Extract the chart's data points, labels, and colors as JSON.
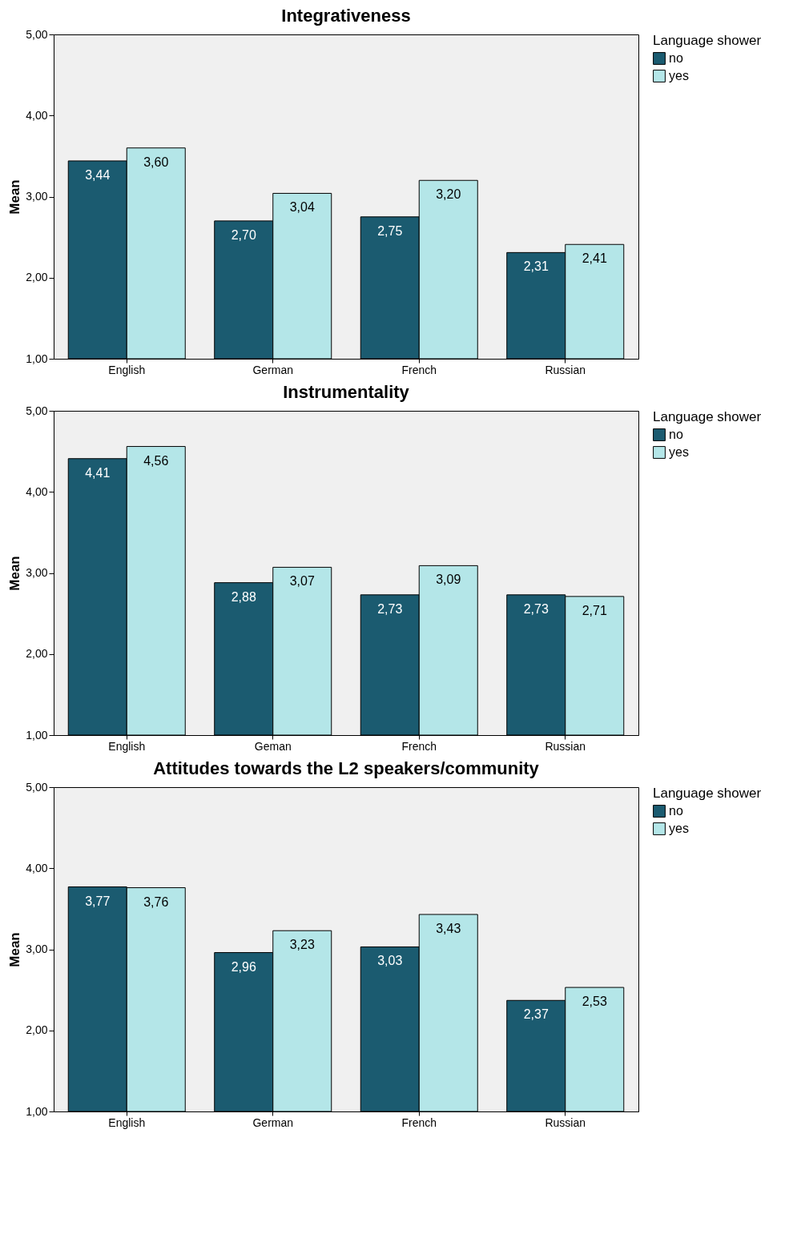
{
  "chart_data": [
    {
      "type": "bar",
      "title": "Integrativeness",
      "ylabel": "Mean",
      "legend_title": "Language shower",
      "legend": "right",
      "grid": false,
      "categories": [
        "English",
        "German",
        "French",
        "Russian"
      ],
      "ylim": [
        1,
        5
      ],
      "yticks": [
        {
          "value": 1,
          "label": "1,00"
        },
        {
          "value": 2,
          "label": "2,00"
        },
        {
          "value": 3,
          "label": "3,00"
        },
        {
          "value": 4,
          "label": "4,00"
        },
        {
          "value": 5,
          "label": "5,00"
        }
      ],
      "series": [
        {
          "name": "no",
          "color": "#1b5b70",
          "values": [
            3.44,
            2.7,
            2.75,
            2.31
          ],
          "value_labels": [
            "3,44",
            "2,70",
            "2,75",
            "2,31"
          ]
        },
        {
          "name": "yes",
          "color": "#b4e6e8",
          "values": [
            3.6,
            3.04,
            3.2,
            2.41
          ],
          "value_labels": [
            "3,60",
            "3,04",
            "3,20",
            "2,41"
          ]
        }
      ]
    },
    {
      "type": "bar",
      "title": "Instrumentality",
      "ylabel": "Mean",
      "legend_title": "Language shower",
      "legend": "right",
      "grid": false,
      "categories": [
        "English",
        "Geman",
        "French",
        "Russian"
      ],
      "ylim": [
        1,
        5
      ],
      "yticks": [
        {
          "value": 1,
          "label": "1,00"
        },
        {
          "value": 2,
          "label": "2,00"
        },
        {
          "value": 3,
          "label": "3,00"
        },
        {
          "value": 4,
          "label": "4,00"
        },
        {
          "value": 5,
          "label": "5,00"
        }
      ],
      "series": [
        {
          "name": "no",
          "color": "#1b5b70",
          "values": [
            4.41,
            2.88,
            2.73,
            2.73
          ],
          "value_labels": [
            "4,41",
            "2,88",
            "2,73",
            "2,73"
          ]
        },
        {
          "name": "yes",
          "color": "#b4e6e8",
          "values": [
            4.56,
            3.07,
            3.09,
            2.71
          ],
          "value_labels": [
            "4,56",
            "3,07",
            "3,09",
            "2,71"
          ]
        }
      ]
    },
    {
      "type": "bar",
      "title": "Attitudes towards the L2 speakers/community",
      "ylabel": "Mean",
      "legend_title": "Language shower",
      "legend": "right",
      "grid": false,
      "categories": [
        "English",
        "German",
        "French",
        "Russian"
      ],
      "ylim": [
        1,
        5
      ],
      "yticks": [
        {
          "value": 1,
          "label": "1,00"
        },
        {
          "value": 2,
          "label": "2,00"
        },
        {
          "value": 3,
          "label": "3,00"
        },
        {
          "value": 4,
          "label": "4,00"
        },
        {
          "value": 5,
          "label": "5,00"
        }
      ],
      "series": [
        {
          "name": "no",
          "color": "#1b5b70",
          "values": [
            3.77,
            2.96,
            3.03,
            2.37
          ],
          "value_labels": [
            "3,77",
            "2,96",
            "3,03",
            "2,37"
          ]
        },
        {
          "name": "yes",
          "color": "#b4e6e8",
          "values": [
            3.76,
            3.23,
            3.43,
            2.53
          ],
          "value_labels": [
            "3,76",
            "3,23",
            "3,43",
            "2,53"
          ]
        }
      ]
    }
  ]
}
